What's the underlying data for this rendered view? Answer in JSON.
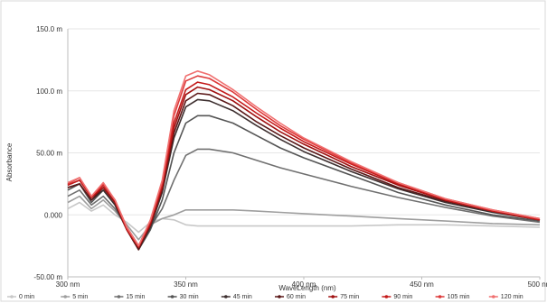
{
  "chart_data": {
    "type": "line",
    "xlabel": "WaveLength (nm)",
    "ylabel": "Absorbance",
    "xlim": [
      300,
      500
    ],
    "ylim": [
      -50,
      150
    ],
    "x_ticks": [
      {
        "value": 300,
        "label": "300 nm"
      },
      {
        "value": 350,
        "label": "350 nm"
      },
      {
        "value": 400,
        "label": "400 nm"
      },
      {
        "value": 450,
        "label": "450 nm"
      },
      {
        "value": 500,
        "label": "500 nm"
      }
    ],
    "y_ticks": [
      {
        "value": -50,
        "label": "-50.00 m"
      },
      {
        "value": 0,
        "label": "0.000"
      },
      {
        "value": 50,
        "label": "50.00 m"
      },
      {
        "value": 100,
        "label": "100.0 m"
      },
      {
        "value": 150,
        "label": "150.0 m"
      }
    ],
    "grid": "horizontal",
    "legend_position": "bottom",
    "x": [
      300,
      305,
      310,
      315,
      320,
      325,
      330,
      335,
      340,
      345,
      350,
      355,
      360,
      370,
      380,
      390,
      400,
      420,
      440,
      460,
      480,
      500
    ],
    "series": [
      {
        "name": "0 min",
        "color": "#c8c8c8",
        "values": [
          5,
          10,
          3,
          8,
          0,
          -6,
          -14,
          -6,
          -3,
          -4,
          -8,
          -9,
          -9,
          -9,
          -9,
          -9,
          -9,
          -9,
          -8,
          -8,
          -9,
          -10
        ]
      },
      {
        "name": "5 min",
        "color": "#9e9e9e",
        "values": [
          10,
          15,
          5,
          12,
          3,
          -8,
          -20,
          -8,
          -3,
          0,
          4,
          4,
          4,
          4,
          3,
          2,
          1,
          -1,
          -3,
          -5,
          -7,
          -8
        ]
      },
      {
        "name": "15 min",
        "color": "#707070",
        "values": [
          15,
          20,
          8,
          15,
          5,
          -10,
          -25,
          -10,
          5,
          28,
          48,
          53,
          53,
          50,
          44,
          38,
          33,
          23,
          14,
          6,
          -1,
          -6
        ]
      },
      {
        "name": "30 min",
        "color": "#555555",
        "values": [
          20,
          25,
          10,
          20,
          8,
          -12,
          -28,
          -12,
          12,
          50,
          74,
          80,
          80,
          74,
          64,
          54,
          46,
          32,
          18,
          8,
          0,
          -5
        ]
      },
      {
        "name": "45 min",
        "color": "#3d2f2f",
        "values": [
          22,
          25,
          12,
          20,
          8,
          -12,
          -28,
          -10,
          18,
          62,
          87,
          93,
          92,
          84,
          72,
          61,
          51,
          35,
          21,
          10,
          2,
          -4
        ]
      },
      {
        "name": "60 min",
        "color": "#5a1818",
        "values": [
          22,
          25,
          12,
          22,
          10,
          -12,
          -28,
          -8,
          20,
          66,
          92,
          98,
          97,
          88,
          75,
          64,
          54,
          37,
          22,
          11,
          3,
          -4
        ]
      },
      {
        "name": "75 min",
        "color": "#a01010",
        "values": [
          24,
          28,
          14,
          22,
          10,
          -12,
          -26,
          -8,
          22,
          70,
          97,
          103,
          101,
          92,
          79,
          67,
          57,
          39,
          24,
          12,
          3,
          -4
        ]
      },
      {
        "name": "90 min",
        "color": "#c41a1a",
        "values": [
          24,
          28,
          14,
          24,
          12,
          -12,
          -26,
          -6,
          24,
          74,
          101,
          107,
          105,
          95,
          82,
          70,
          59,
          41,
          25,
          12,
          3,
          -4
        ]
      },
      {
        "name": "105 min",
        "color": "#dd3a3a",
        "values": [
          25,
          30,
          15,
          25,
          12,
          -10,
          -25,
          -5,
          26,
          80,
          108,
          112,
          110,
          99,
          85,
          72,
          61,
          42,
          26,
          13,
          4,
          -3
        ]
      },
      {
        "name": "120 min",
        "color": "#f07070",
        "values": [
          26,
          30,
          15,
          26,
          12,
          -10,
          -25,
          -4,
          28,
          84,
          112,
          116,
          113,
          101,
          87,
          74,
          62,
          43,
          26,
          13,
          4,
          -3
        ]
      }
    ]
  }
}
